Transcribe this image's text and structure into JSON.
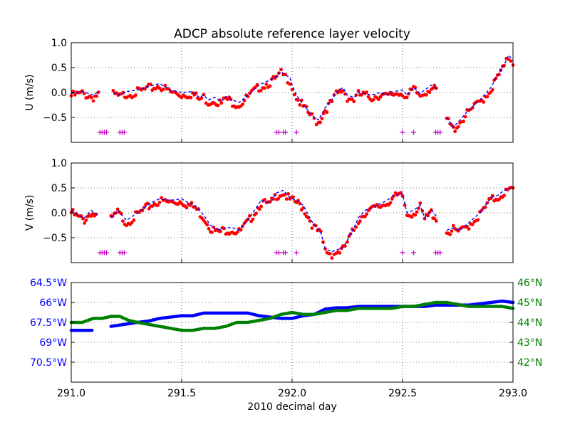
{
  "figure": {
    "title": "ADCP absolute reference layer velocity",
    "xlabel": "2010 decimal day",
    "x_ticks": [
      "291.0",
      "291.5",
      "292.0",
      "292.5",
      "293.0"
    ]
  },
  "colors": {
    "measured": "#ff0000",
    "smoothed": "#0000ff",
    "flag": "#bf00bf",
    "lon": "#0000ff",
    "lat": "#008000",
    "grid": "#000000"
  },
  "chart_data": [
    {
      "type": "scatter",
      "panel": "U",
      "ylabel": "U (m/s)",
      "xlim": [
        291.0,
        293.0
      ],
      "ylim": [
        -1.0,
        1.0
      ],
      "grid": true,
      "y_ticks": [
        "1.0",
        "0.5",
        "0.0",
        "−0.5"
      ],
      "y_tick_values": [
        1.0,
        0.5,
        0.0,
        -0.5
      ],
      "series": [
        {
          "role": "measured",
          "marker": "dot",
          "x": [
            291.0,
            291.05,
            291.1,
            291.13,
            291.16,
            291.19,
            291.22,
            291.25,
            291.3,
            291.35,
            291.4,
            291.45,
            291.5,
            291.55,
            291.58,
            291.6,
            291.62,
            291.65,
            291.68,
            291.7,
            291.73,
            291.76,
            291.8,
            291.85,
            291.9,
            291.93,
            291.95,
            291.97,
            291.99,
            292.0,
            292.02,
            292.05,
            292.08,
            292.1,
            292.12,
            292.15,
            292.18,
            292.2,
            292.23,
            292.25,
            292.28,
            292.3,
            292.33,
            292.36,
            292.4,
            292.43,
            292.46,
            292.5,
            292.52,
            292.55,
            292.58,
            292.6,
            292.63,
            292.66,
            292.68,
            292.7,
            292.73,
            292.76,
            292.8,
            292.85,
            292.9,
            292.93,
            292.96,
            292.98,
            293.0
          ],
          "y": [
            -0.02,
            0.02,
            -0.05,
            0.03,
            null,
            0.0,
            -0.05,
            0.02,
            0.05,
            0.12,
            0.18,
            0.05,
            0.0,
            0.02,
            -0.1,
            -0.05,
            -0.15,
            -0.1,
            -0.18,
            -0.08,
            -0.15,
            -0.2,
            -0.05,
            0.15,
            0.25,
            0.32,
            0.42,
            0.35,
            0.3,
            0.15,
            -0.05,
            -0.25,
            -0.4,
            -0.5,
            -0.55,
            -0.3,
            -0.15,
            0.0,
            0.1,
            -0.05,
            -0.1,
            0.0,
            -0.02,
            -0.05,
            0.0,
            -0.05,
            0.02,
            0.05,
            -0.05,
            0.1,
            -0.02,
            0.05,
            0.15,
            0.05,
            null,
            -0.5,
            -0.7,
            -0.55,
            -0.35,
            -0.15,
            0.1,
            0.35,
            0.55,
            0.75,
            0.65
          ]
        }
      ],
      "flags": {
        "marker": "plus",
        "value": -0.8,
        "x": [
          291.13,
          291.14,
          291.15,
          291.16,
          291.22,
          291.23,
          291.24,
          291.93,
          291.94,
          291.96,
          291.97,
          292.02,
          292.5,
          292.55,
          292.65,
          292.66,
          292.67
        ]
      }
    },
    {
      "type": "scatter",
      "panel": "V",
      "ylabel": "V (m/s)",
      "xlim": [
        291.0,
        293.0
      ],
      "ylim": [
        -1.0,
        1.0
      ],
      "grid": true,
      "y_ticks": [
        "1.0",
        "0.5",
        "0.0",
        "−0.5"
      ],
      "y_tick_values": [
        1.0,
        0.5,
        0.0,
        -0.5
      ],
      "series": [
        {
          "role": "measured",
          "marker": "dot",
          "x": [
            291.0,
            291.03,
            291.06,
            291.09,
            291.12,
            291.15,
            291.18,
            291.21,
            291.25,
            291.3,
            291.33,
            291.36,
            291.4,
            291.45,
            291.5,
            291.53,
            291.56,
            291.6,
            291.63,
            291.66,
            291.7,
            291.73,
            291.76,
            291.8,
            291.83,
            291.86,
            291.9,
            291.93,
            291.96,
            291.99,
            292.02,
            292.05,
            292.08,
            292.1,
            292.13,
            292.15,
            292.18,
            292.2,
            292.23,
            292.25,
            292.28,
            292.3,
            292.33,
            292.36,
            292.4,
            292.43,
            292.46,
            292.5,
            292.52,
            292.55,
            292.58,
            292.6,
            292.63,
            292.66,
            292.68,
            292.7,
            292.73,
            292.76,
            292.8,
            292.85,
            292.9,
            292.93,
            292.96,
            293.0
          ],
          "y": [
            0.05,
            -0.05,
            -0.1,
            0.05,
            -0.05,
            null,
            -0.1,
            0.05,
            -0.15,
            0.0,
            0.1,
            0.2,
            0.28,
            0.25,
            0.28,
            0.2,
            0.15,
            -0.05,
            -0.25,
            -0.35,
            -0.3,
            -0.3,
            -0.35,
            -0.15,
            0.05,
            0.25,
            0.2,
            0.4,
            0.45,
            0.3,
            0.25,
            0.15,
            -0.1,
            -0.25,
            -0.4,
            -0.72,
            -0.78,
            -0.75,
            -0.7,
            -0.55,
            -0.3,
            -0.1,
            0.05,
            0.1,
            0.18,
            0.25,
            0.35,
            0.38,
            0.0,
            0.05,
            0.15,
            -0.1,
            0.05,
            -0.1,
            null,
            -0.35,
            -0.3,
            -0.35,
            -0.2,
            0.0,
            0.3,
            0.35,
            0.45,
            0.5
          ]
        }
      ],
      "flags": {
        "marker": "plus",
        "value": -0.8,
        "x": [
          291.13,
          291.14,
          291.15,
          291.16,
          291.22,
          291.23,
          291.24,
          291.93,
          291.94,
          291.96,
          291.97,
          292.02,
          292.5,
          292.55,
          292.65,
          292.66,
          292.67
        ]
      }
    },
    {
      "type": "scatter",
      "panel": "position",
      "xlim": [
        291.0,
        293.0
      ],
      "left_axis": {
        "ticks": [
          "64.5°W",
          "66°W",
          "67.5°W",
          "69°W",
          "70.5°W"
        ],
        "tick_values": [
          -64.5,
          -66.0,
          -67.5,
          -69.0,
          -70.5
        ],
        "ylim": [
          -72.0,
          -64.5
        ]
      },
      "right_axis": {
        "ticks": [
          "46°N",
          "45°N",
          "44°N",
          "43°N",
          "42°N"
        ],
        "tick_values": [
          46,
          45,
          44,
          43,
          42
        ],
        "ylim": [
          41.0,
          46.0
        ]
      },
      "series": [
        {
          "role": "longitude",
          "axis": "left",
          "x": [
            291.0,
            291.05,
            291.1,
            291.14,
            291.18,
            291.22,
            291.26,
            291.3,
            291.35,
            291.4,
            291.45,
            291.5,
            291.55,
            291.6,
            291.65,
            291.7,
            291.75,
            291.8,
            291.85,
            291.9,
            291.95,
            292.0,
            292.05,
            292.1,
            292.15,
            292.2,
            292.25,
            292.3,
            292.35,
            292.4,
            292.45,
            292.5,
            292.55,
            292.6,
            292.65,
            292.7,
            292.75,
            292.8,
            292.85,
            292.9,
            292.95,
            293.0
          ],
          "y": [
            -68.1,
            -68.1,
            -68.1,
            null,
            -67.8,
            -67.7,
            -67.6,
            -67.5,
            -67.4,
            -67.2,
            -67.1,
            -67.0,
            -67.0,
            -66.8,
            -66.8,
            -66.8,
            -66.8,
            -66.8,
            -67.0,
            -67.1,
            -67.2,
            -67.2,
            -67.0,
            -66.9,
            -66.5,
            -66.4,
            -66.4,
            -66.3,
            -66.3,
            -66.3,
            -66.3,
            -66.3,
            -66.3,
            -66.3,
            -66.2,
            -66.2,
            -66.2,
            -66.2,
            -66.1,
            -66.0,
            -65.9,
            -66.0
          ]
        },
        {
          "role": "latitude",
          "axis": "right",
          "x": [
            291.0,
            291.05,
            291.1,
            291.14,
            291.18,
            291.22,
            291.26,
            291.3,
            291.35,
            291.4,
            291.45,
            291.5,
            291.55,
            291.6,
            291.65,
            291.7,
            291.75,
            291.8,
            291.85,
            291.9,
            291.95,
            292.0,
            292.05,
            292.1,
            292.15,
            292.2,
            292.25,
            292.3,
            292.35,
            292.4,
            292.45,
            292.5,
            292.55,
            292.6,
            292.65,
            292.7,
            292.75,
            292.8,
            292.85,
            292.9,
            292.95,
            293.0
          ],
          "y": [
            44.0,
            44.0,
            44.2,
            44.2,
            44.3,
            44.3,
            44.1,
            44.0,
            43.9,
            43.8,
            43.7,
            43.6,
            43.6,
            43.7,
            43.7,
            43.8,
            44.0,
            44.0,
            44.1,
            44.2,
            44.4,
            44.5,
            44.4,
            44.4,
            44.5,
            44.6,
            44.6,
            44.7,
            44.7,
            44.7,
            44.7,
            44.8,
            44.8,
            44.9,
            45.0,
            45.0,
            44.9,
            44.8,
            44.8,
            44.8,
            44.8,
            44.7
          ]
        }
      ]
    }
  ]
}
